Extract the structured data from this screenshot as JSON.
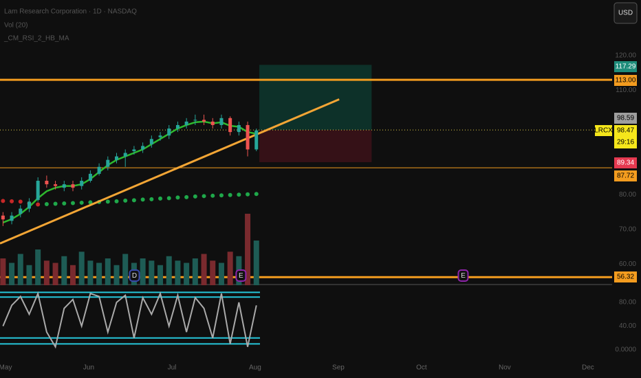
{
  "chart_data": {
    "type": "candlestick",
    "title": "Lam Research Corporation · 1D · NASDAQ",
    "indicators": [
      "Vol (20)",
      "_CM_RSI_2_HB_MA"
    ],
    "currency": "USD",
    "symbol": "LRCX",
    "countdown": "29:16",
    "x": [
      4.97,
      5.075,
      5.18,
      5.285,
      5.39,
      5.495,
      5.6,
      5.705,
      5.81,
      5.915,
      6.02,
      6.125,
      6.23,
      6.335,
      6.44,
      6.545,
      6.65,
      6.755,
      6.86,
      6.965,
      7.07,
      7.175,
      7.28,
      7.385,
      7.49,
      7.595,
      7.7,
      7.805,
      7.91,
      8.015
    ],
    "open": [
      74,
      72.5,
      74.5,
      76,
      78.5,
      84,
      83,
      82,
      83,
      82.5,
      84,
      86,
      88,
      90,
      91,
      92.5,
      93,
      94.5,
      96.5,
      97,
      99,
      100,
      101.5,
      101.5,
      101,
      100,
      102,
      98,
      100,
      93
    ],
    "high": [
      75,
      75,
      77,
      79,
      85,
      85.5,
      84,
      84,
      84,
      85,
      87,
      89,
      91,
      92,
      93,
      94,
      95,
      97,
      98,
      100,
      101,
      102,
      103,
      103,
      102,
      103,
      102.5,
      101,
      101,
      99
    ],
    "low": [
      71,
      71.5,
      73.5,
      75,
      78,
      82,
      81.5,
      81,
      81,
      81.5,
      83.5,
      85.5,
      87,
      89,
      88,
      91.5,
      92,
      93.5,
      95.5,
      96,
      98,
      99,
      100,
      100,
      99,
      99,
      97,
      97,
      91,
      92.5
    ],
    "close": [
      72.9,
      74,
      76,
      78,
      84,
      83,
      82.5,
      83,
      82,
      84,
      86,
      88,
      90,
      91,
      92,
      93,
      94,
      96,
      97,
      99,
      100,
      101,
      101.5,
      101,
      100,
      102,
      98,
      100,
      93,
      98.47
    ],
    "ma": [
      72,
      73,
      74.5,
      76.5,
      79,
      81,
      82,
      82.5,
      82.5,
      83,
      84.5,
      86.5,
      88.5,
      90,
      91,
      92,
      93,
      94.5,
      96,
      97.5,
      99,
      100,
      100.8,
      101,
      100.5,
      100.8,
      99.8,
      99.5,
      98,
      97.5
    ],
    "dots": [
      78.2,
      78.1,
      78.0,
      77.5,
      77.2,
      77.3,
      77.4,
      77.5,
      77.6,
      77.7,
      77.8,
      77.9,
      78.0,
      78.1,
      78.3,
      78.4,
      78.6,
      78.7,
      78.9,
      79.0,
      79.2,
      79.3,
      79.5,
      79.6,
      79.7,
      79.8,
      79.9,
      80.0,
      80.1,
      80.2
    ],
    "dots_color_up_from": 5,
    "volume": [
      12,
      10,
      14,
      9,
      16,
      11,
      10,
      13,
      9,
      15,
      11,
      10,
      12,
      9,
      14,
      10,
      12,
      11,
      9,
      13,
      11,
      10,
      12,
      14,
      11,
      10,
      15,
      13,
      32,
      20
    ],
    "volume_ylim": [
      0,
      40
    ],
    "trendline": {
      "x": [
        4.934,
        9.01
      ],
      "values": [
        66,
        107.4
      ]
    },
    "position": {
      "xlim": [
        8.05,
        9.4
      ],
      "target": 117.29,
      "entry": 98.59,
      "stop": 89.34
    },
    "levels": [
      {
        "value": 113,
        "label": "113.00"
      },
      {
        "value": 87.72,
        "label": 87.72
      },
      {
        "value": 56.32,
        "label": 56.32
      }
    ],
    "events": [
      {
        "x": 6.55,
        "label": "D"
      },
      {
        "x": 7.83,
        "label": "E"
      },
      {
        "x": 10.5,
        "label": "E"
      }
    ],
    "xlim": [
      4.934,
      12.29
    ],
    "xticks": [
      {
        "value": 5,
        "label": "May"
      },
      {
        "value": 6,
        "label": "Jun"
      },
      {
        "value": 7,
        "label": "Jul"
      },
      {
        "value": 8,
        "label": "Aug"
      },
      {
        "value": 9,
        "label": "Sep"
      },
      {
        "value": 10,
        "label": "Oct"
      },
      {
        "value": 11,
        "label": "Nov"
      },
      {
        "value": 12,
        "label": "Dec"
      }
    ],
    "ylim": [
      54,
      130
    ],
    "yticks": [
      {
        "value": 60,
        "label": "60.00"
      },
      {
        "value": 70,
        "label": "70.00"
      },
      {
        "value": 80,
        "label": "80.00"
      },
      {
        "value": 110,
        "label": "110.00"
      },
      {
        "value": 120,
        "label": "120.00"
      }
    ],
    "rsi": {
      "values": [
        40,
        75,
        90,
        60,
        95,
        30,
        5,
        70,
        85,
        40,
        95,
        90,
        30,
        80,
        92,
        20,
        88,
        60,
        95,
        40,
        92,
        30,
        88,
        70,
        20,
        95,
        10,
        80,
        5,
        75
      ],
      "ylim": [
        0,
        100
      ],
      "yticks": [
        {
          "value": 0,
          "label": "0.0000"
        },
        {
          "value": 40,
          "label": "40.00"
        },
        {
          "value": 80,
          "label": "80.00"
        }
      ],
      "bands": [
        97,
        89,
        20,
        10
      ]
    }
  }
}
